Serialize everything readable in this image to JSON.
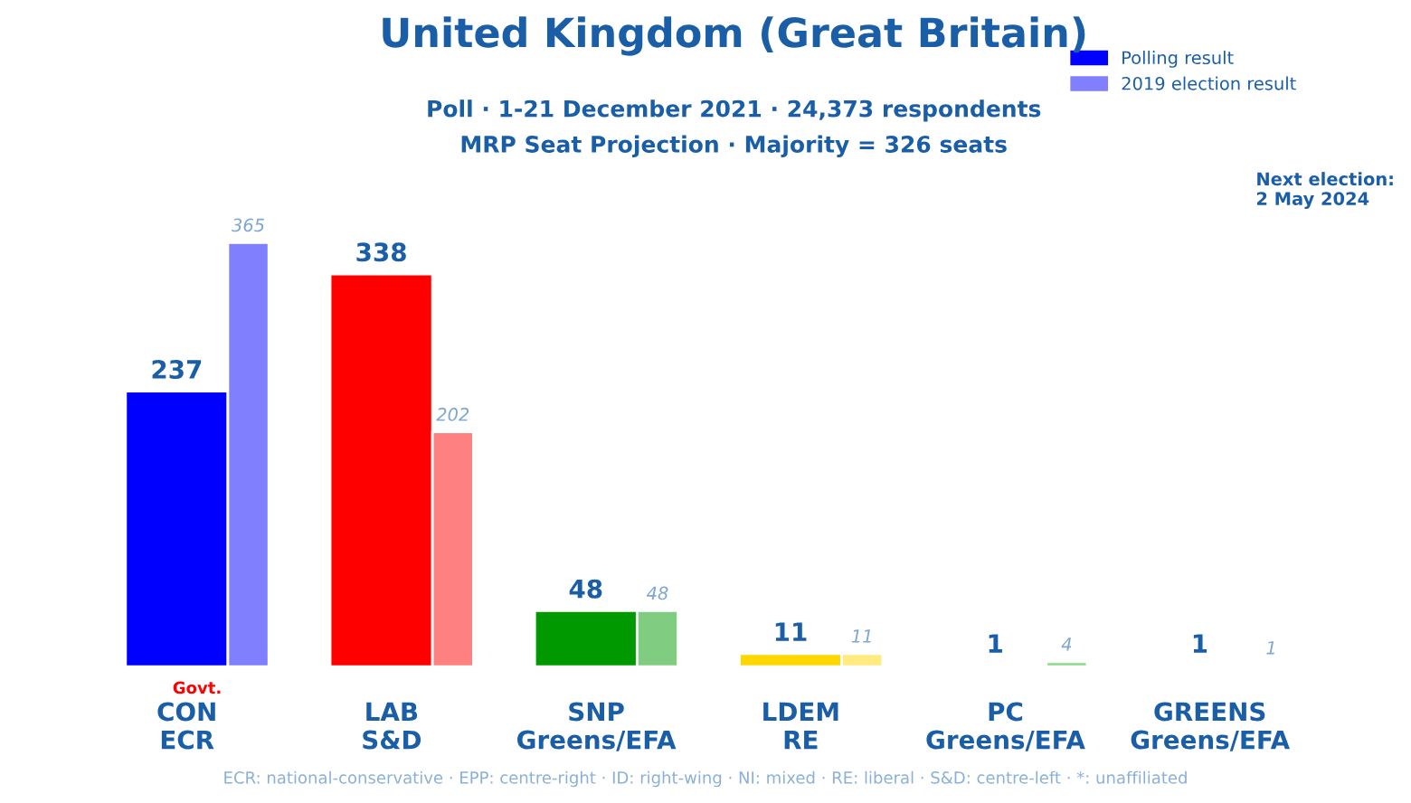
{
  "chart_data": {
    "type": "bar",
    "title": "United Kingdom (Great Britain)",
    "subtitle": "Poll · 1-21 December 2021 · 24,373 respondents\nMRP Seat Projection · Majority = 326 seats",
    "categories": [
      "CON\nECR",
      "LAB\nS&D",
      "SNP\nGreens/EFA",
      "LDEM\nRE",
      "PC\nGreens/EFA",
      "GREENS\nGreens/EFA"
    ],
    "series": [
      {
        "name": "Polling result",
        "color": "#0000ff",
        "colors": [
          "#0000ff",
          "#ff0000",
          "#009900",
          "#ffd700",
          "#33bb33",
          "#33bb33"
        ],
        "values": [
          237,
          338,
          48,
          11,
          1,
          1
        ]
      },
      {
        "name": "2019 election result",
        "color": "#8080ff",
        "colors": [
          "#8080ff",
          "#ff8080",
          "#80cc80",
          "#ffeb80",
          "#88dd88",
          "#99dd99"
        ],
        "values": [
          365,
          202,
          48,
          11,
          4,
          1
        ]
      }
    ],
    "data_labels": true,
    "legend": "top right",
    "annotations": [
      {
        "text": "Govt.",
        "x": "CON\nECR",
        "y": 0
      },
      "Next election:\n2 May 2024",
      "ECR: national-conservative · EPP: centre-right · ID: right-wing · NI: mixed · RE: liberal · S&D: centre-left · *: unaffiliated"
    ]
  }
}
